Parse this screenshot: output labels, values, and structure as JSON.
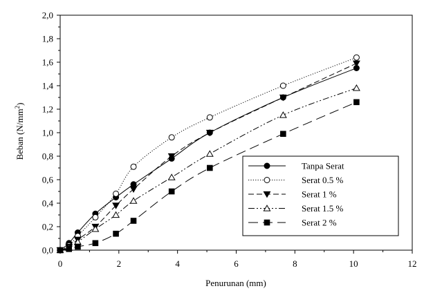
{
  "chart_data": {
    "type": "line",
    "xlabel": "Penurunan (mm)",
    "ylabel_main": "Beban (N/mm",
    "ylabel_sup": "2",
    "ylabel_tail": ")",
    "xlim": [
      0,
      12
    ],
    "ylim": [
      0,
      2.0
    ],
    "x_ticks": [
      "0",
      "2",
      "4",
      "6",
      "8",
      "10",
      "12"
    ],
    "y_ticks": [
      "0,0",
      "0,2",
      "0,4",
      "0,6",
      "0,8",
      "1,0",
      "1,2",
      "1,4",
      "1,6",
      "1,8",
      "2,0"
    ],
    "grid": false,
    "legend_position": "bottom-right",
    "series": [
      {
        "name": "Tanpa Serat",
        "marker": "filled-circle",
        "line_style": "solid",
        "x": [
          0,
          0.3,
          0.6,
          1.2,
          1.9,
          2.5,
          3.8,
          5.1,
          7.6,
          10.1
        ],
        "y": [
          0.0,
          0.06,
          0.15,
          0.31,
          0.45,
          0.56,
          0.78,
          1.0,
          1.3,
          1.55
        ]
      },
      {
        "name": "Serat 0.5 %",
        "marker": "open-circle",
        "line_style": "dotted",
        "x": [
          0,
          0.3,
          0.6,
          1.2,
          1.9,
          2.5,
          3.8,
          5.1,
          7.6,
          10.1
        ],
        "y": [
          0.0,
          0.04,
          0.12,
          0.28,
          0.48,
          0.71,
          0.96,
          1.13,
          1.4,
          1.64
        ]
      },
      {
        "name": "Serat 1 %",
        "marker": "filled-triangle-down",
        "line_style": "dashed",
        "x": [
          0,
          0.3,
          0.6,
          1.2,
          1.9,
          2.5,
          3.8,
          5.1,
          7.6,
          10.1
        ],
        "y": [
          0.0,
          0.03,
          0.09,
          0.2,
          0.38,
          0.52,
          0.8,
          1.0,
          1.3,
          1.59
        ]
      },
      {
        "name": "Serat 1.5 %",
        "marker": "open-triangle-up",
        "line_style": "dash-dot-dot",
        "x": [
          0,
          0.3,
          0.6,
          1.2,
          1.9,
          2.5,
          3.8,
          5.1,
          7.6,
          10.1
        ],
        "y": [
          0.0,
          0.02,
          0.07,
          0.18,
          0.3,
          0.42,
          0.62,
          0.82,
          1.15,
          1.38
        ]
      },
      {
        "name": "Serat 2 %",
        "marker": "filled-square",
        "line_style": "long-dash",
        "x": [
          0,
          0.3,
          0.6,
          1.2,
          1.9,
          2.5,
          3.8,
          5.1,
          7.6,
          10.1
        ],
        "y": [
          0.0,
          0.01,
          0.03,
          0.06,
          0.14,
          0.25,
          0.5,
          0.7,
          0.99,
          1.26
        ]
      }
    ]
  }
}
